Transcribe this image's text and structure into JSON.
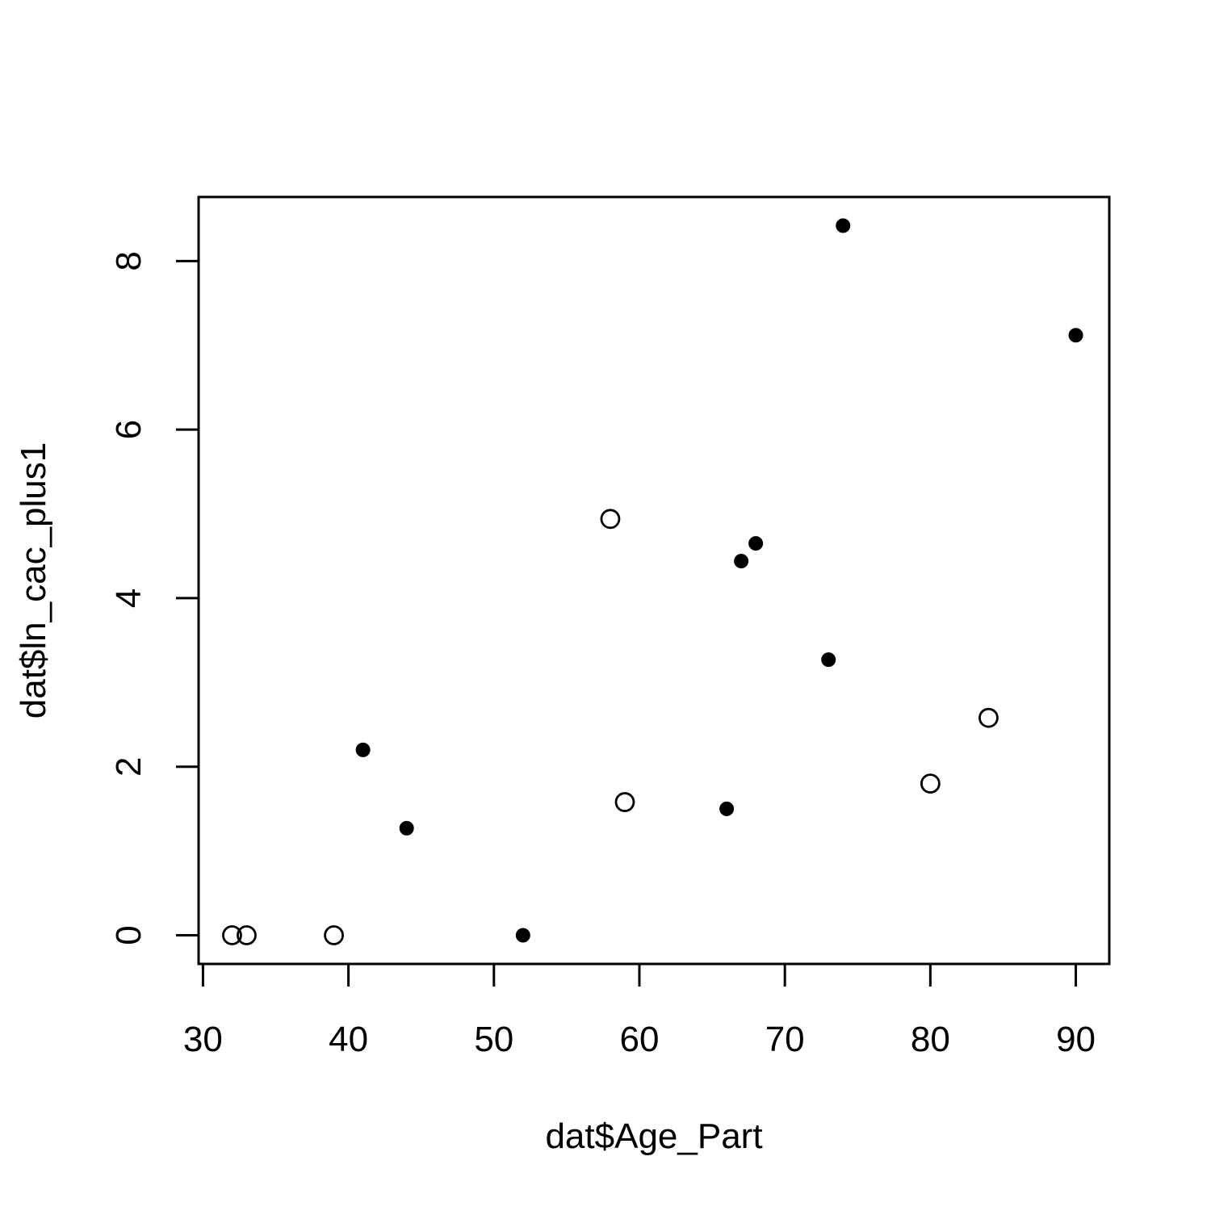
{
  "chart_data": {
    "type": "scatter",
    "title": "",
    "xlabel": "dat$Age_Part",
    "ylabel": "dat$ln_cac_plus1",
    "xlim": [
      29.7,
      92.3
    ],
    "ylim": [
      -0.34,
      8.76
    ],
    "x_ticks": [
      30,
      40,
      50,
      60,
      70,
      80,
      90
    ],
    "y_ticks": [
      0,
      2,
      4,
      6,
      8
    ],
    "grid": false,
    "legend": "none",
    "series": [
      {
        "marker": "filled-circle",
        "color": "#000000",
        "points": [
          {
            "x": 41,
            "y": 2.2
          },
          {
            "x": 44,
            "y": 1.27
          },
          {
            "x": 52,
            "y": 0
          },
          {
            "x": 66,
            "y": 1.5
          },
          {
            "x": 67,
            "y": 4.44
          },
          {
            "x": 68,
            "y": 4.65
          },
          {
            "x": 73,
            "y": 3.27
          },
          {
            "x": 74,
            "y": 8.42
          },
          {
            "x": 90,
            "y": 7.12
          }
        ]
      },
      {
        "marker": "open-circle",
        "color": "#000000",
        "points": [
          {
            "x": 32,
            "y": 0
          },
          {
            "x": 33,
            "y": 0
          },
          {
            "x": 39,
            "y": 0
          },
          {
            "x": 58,
            "y": 4.94
          },
          {
            "x": 59,
            "y": 1.58
          },
          {
            "x": 80,
            "y": 1.8
          },
          {
            "x": 84,
            "y": 2.58
          }
        ]
      }
    ]
  }
}
